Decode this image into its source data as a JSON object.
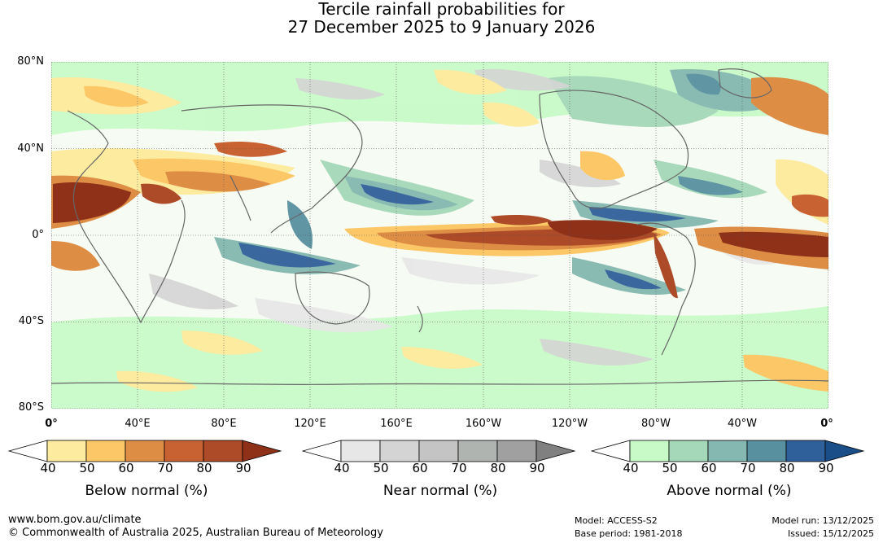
{
  "title_line1": "Tercile rainfall probabilities for",
  "title_line2": "27 December 2025 to 9 January 2026",
  "lat_labels": [
    "80°N",
    "40°N",
    "0°",
    "40°S",
    "80°S"
  ],
  "lon_labels": [
    "0°",
    "40°E",
    "80°E",
    "120°E",
    "160°E",
    "160°W",
    "120°W",
    "80°W",
    "40°W",
    "0°"
  ],
  "colorbars": [
    {
      "caption": "Below normal (%)",
      "ticks": [
        "40",
        "50",
        "60",
        "70",
        "80",
        "90"
      ],
      "colors": [
        "#ffffff",
        "#fdeba0",
        "#fcc766",
        "#de8d45",
        "#c96232",
        "#ad4a27",
        "#8f3018"
      ]
    },
    {
      "caption": "Near normal (%)",
      "ticks": [
        "40",
        "50",
        "60",
        "70",
        "80",
        "90"
      ],
      "colors": [
        "#ffffff",
        "#e7e7e7",
        "#d4d4d4",
        "#c4c4c4",
        "#b0b4b0",
        "#a0a0a0",
        "#808080"
      ]
    },
    {
      "caption": "Above normal (%)",
      "ticks": [
        "40",
        "50",
        "60",
        "70",
        "80",
        "90"
      ],
      "colors": [
        "#ffffff",
        "#c8fac8",
        "#a4d8b8",
        "#84b8b0",
        "#5890a0",
        "#30609a",
        "#1a4e88"
      ]
    }
  ],
  "footer": {
    "url": "www.bom.gov.au/climate",
    "copyright": "© Commonwealth of Australia 2025, Australian Bureau of Meteorology",
    "model": "Model: ACCESS-S2",
    "base_period": "Base period: 1981-2018",
    "model_run": "Model run: 13/12/2025",
    "issued": "Issued: 15/12/2025"
  },
  "colors": {
    "below_strong": "#8f3018",
    "below_mid": "#de8d45",
    "below_light": "#fdeba0",
    "near": "#d4d4d4",
    "above_light": "#c8fac8",
    "above_mid": "#84b8b0",
    "above_strong": "#30609a",
    "coast": "#666666"
  }
}
